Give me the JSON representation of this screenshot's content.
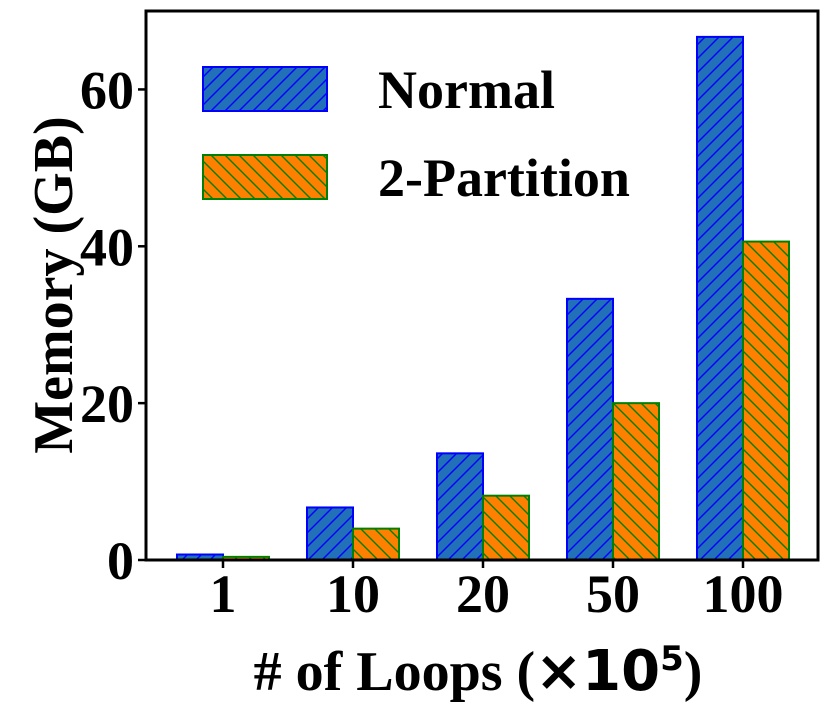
{
  "chart_data": {
    "type": "bar",
    "categories": [
      "1",
      "10",
      "20",
      "50",
      "100"
    ],
    "series": [
      {
        "name": "Normal",
        "values": [
          0.7,
          6.7,
          13.6,
          33.3,
          66.7
        ],
        "color": "#2270b8",
        "edge_color": "#0000ff",
        "hatch": "forward-diagonal"
      },
      {
        "name": "2-Partition",
        "values": [
          0.4,
          4.0,
          8.2,
          20.0,
          40.6
        ],
        "color": "#ff8000",
        "edge_color": "#008000",
        "hatch": "back-diagonal"
      }
    ],
    "xlabel_prefix": "# of Loops (",
    "xlabel_times": "×",
    "xlabel_base": "10",
    "xlabel_exp": "5",
    "xlabel_suffix": ")",
    "ylabel": "Memory (GB)",
    "ylim": [
      0,
      70
    ],
    "yticks": [
      0,
      20,
      40,
      60
    ],
    "legend_position": "top-left"
  }
}
